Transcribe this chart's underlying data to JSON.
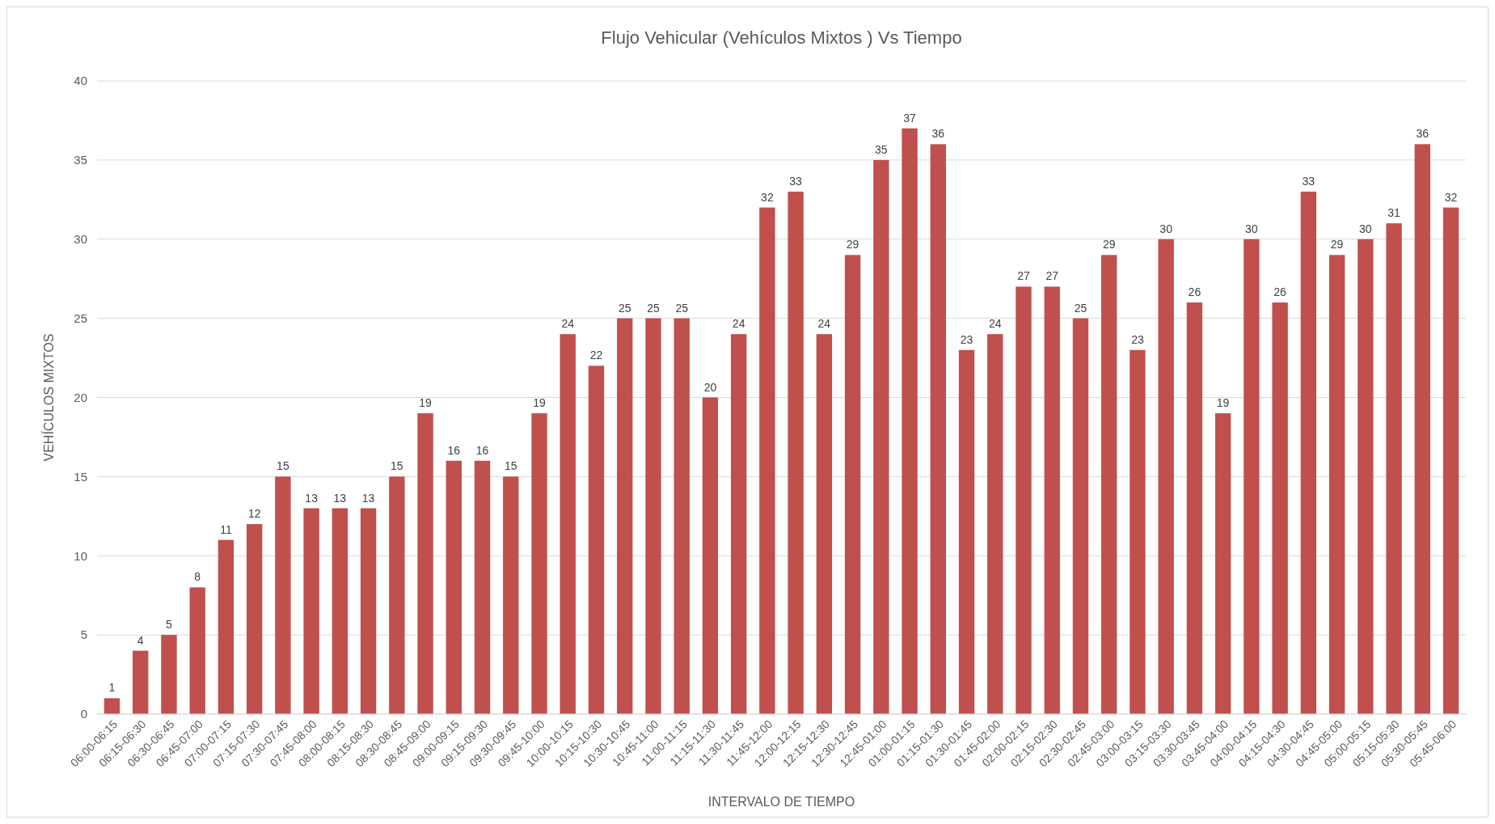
{
  "chart_data": {
    "type": "bar",
    "title": "Flujo Vehicular (Vehículos Mixtos ) Vs Tiempo",
    "xlabel": "INTERVALO DE TIEMPO",
    "ylabel": "VEHÍCULOS MIXTOS",
    "categories": [
      "06:00-06:15",
      "06:15-06:30",
      "06:30-06:45",
      "06:45-07:00",
      "07:00-07:15",
      "07:15-07:30",
      "07:30-07:45",
      "07:45-08:00",
      "08:00-08:15",
      "08:15-08:30",
      "08:30-08:45",
      "08:45-09:00",
      "09:00-09:15",
      "09:15-09:30",
      "09:30-09:45",
      "09:45-10:00",
      "10:00-10:15",
      "10:15-10:30",
      "10:30-10:45",
      "10:45-11:00",
      "11:00-11:15",
      "11:15-11:30",
      "11:30-11:45",
      "11:45-12:00",
      "12:00-12:15",
      "12:15-12:30",
      "12:30-12:45",
      "12:45-01:00",
      "01:00-01:15",
      "01:15-01:30",
      "01:30-01:45",
      "01:45-02:00",
      "02:00-02:15",
      "02:15-02:30",
      "02:30-02:45",
      "02:45-03:00",
      "03:00-03:15",
      "03:15-03:30",
      "03:30-03:45",
      "03:45-04:00",
      "04:00-04:15",
      "04:15-04:30",
      "04:30-04:45",
      "04:45-05:00",
      "05:00-05:15",
      "05:15-05:30",
      "05:30-05:45",
      "05:45-06:00"
    ],
    "values": [
      1,
      4,
      5,
      8,
      11,
      12,
      15,
      13,
      13,
      13,
      15,
      19,
      16,
      16,
      15,
      19,
      24,
      22,
      25,
      25,
      25,
      20,
      24,
      32,
      33,
      24,
      29,
      35,
      37,
      36,
      23,
      24,
      27,
      27,
      25,
      29,
      23,
      30,
      26,
      19,
      30,
      26,
      33,
      29,
      30,
      31,
      36,
      32
    ],
    "color": "#c0504d",
    "ylim": [
      0,
      40
    ],
    "yticks": [
      0,
      5,
      10,
      15,
      20,
      25,
      30,
      35,
      40
    ],
    "grid": "y",
    "data_labels": true
  }
}
